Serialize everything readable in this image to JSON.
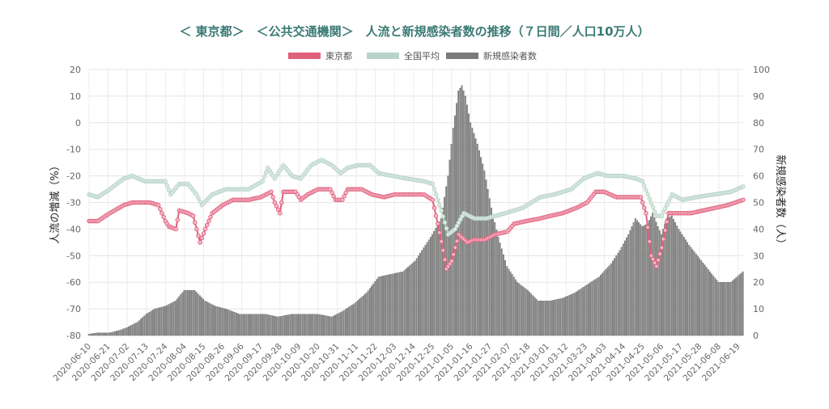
{
  "chart_data": {
    "type": "bar+line",
    "title": "＜ 東京都＞　＜公共交通機関＞　人流と新規感染者数の推移（７日間／人口10万人）",
    "legend": [
      "東京都",
      "全国平均",
      "新規感染者数"
    ],
    "legend_position": "top-center",
    "ylabel_left": "人流の増減（%）",
    "ylabel_right": "新規感染者数（人）",
    "y_left_lim": [
      -80,
      20
    ],
    "y_left_ticks": [
      "20",
      "10",
      "0",
      "-10",
      "-20",
      "-30",
      "-40",
      "-50",
      "-60",
      "-70",
      "-80"
    ],
    "y_right_lim": [
      0,
      100
    ],
    "y_right_ticks": [
      "100",
      "90",
      "80",
      "70",
      "60",
      "50",
      "40",
      "30",
      "20",
      "10",
      "0"
    ],
    "x_start": "2020-06-10",
    "x_end": "2021-06-22",
    "x_ticks": [
      "2020-06-10",
      "2020-06-21",
      "2020-07-02",
      "2020-07-13",
      "2020-07-24",
      "2020-08-04",
      "2020-08-15",
      "2020-08-26",
      "2020-09-06",
      "2020-09-17",
      "2020-09-28",
      "2020-10-09",
      "2020-10-20",
      "2020-10-31",
      "2020-11-11",
      "2020-11-22",
      "2020-12-03",
      "2020-12-14",
      "2020-12-25",
      "2021-01-05",
      "2021-01-16",
      "2021-01-27",
      "2021-02-07",
      "2021-02-18",
      "2021-03-01",
      "2021-03-12",
      "2021-03-23",
      "2021-04-03",
      "2021-04-14",
      "2021-04-25",
      "2021-05-06",
      "2021-05-17",
      "2021-05-28",
      "2021-06-08",
      "2021-06-19"
    ],
    "grid": true,
    "series": [
      {
        "name": "東京都",
        "axis": "left",
        "color": "#e0607e",
        "points": [
          [
            "2020-06-10",
            -37
          ],
          [
            "2020-06-15",
            -37
          ],
          [
            "2020-06-22",
            -34
          ],
          [
            "2020-06-30",
            -31
          ],
          [
            "2020-07-05",
            -30
          ],
          [
            "2020-07-15",
            -30
          ],
          [
            "2020-07-20",
            -31
          ],
          [
            "2020-07-24",
            -37
          ],
          [
            "2020-07-26",
            -39
          ],
          [
            "2020-07-30",
            -40
          ],
          [
            "2020-08-01",
            -33
          ],
          [
            "2020-08-06",
            -34
          ],
          [
            "2020-08-09",
            -35
          ],
          [
            "2020-08-13",
            -45
          ],
          [
            "2020-08-16",
            -40
          ],
          [
            "2020-08-20",
            -34
          ],
          [
            "2020-08-26",
            -31
          ],
          [
            "2020-09-01",
            -29
          ],
          [
            "2020-09-10",
            -29
          ],
          [
            "2020-09-17",
            -28
          ],
          [
            "2020-09-23",
            -26
          ],
          [
            "2020-09-25",
            -30
          ],
          [
            "2020-09-28",
            -34
          ],
          [
            "2020-09-30",
            -26
          ],
          [
            "2020-10-07",
            -26
          ],
          [
            "2020-10-10",
            -29
          ],
          [
            "2020-10-14",
            -27
          ],
          [
            "2020-10-20",
            -25
          ],
          [
            "2020-10-27",
            -25
          ],
          [
            "2020-10-30",
            -29
          ],
          [
            "2020-11-03",
            -29
          ],
          [
            "2020-11-06",
            -25
          ],
          [
            "2020-11-14",
            -25
          ],
          [
            "2020-11-20",
            -27
          ],
          [
            "2020-11-27",
            -28
          ],
          [
            "2020-12-03",
            -27
          ],
          [
            "2020-12-10",
            -27
          ],
          [
            "2020-12-20",
            -27
          ],
          [
            "2020-12-25",
            -29
          ],
          [
            "2020-12-28",
            -38
          ],
          [
            "2020-12-31",
            -48
          ],
          [
            "2021-01-02",
            -55
          ],
          [
            "2021-01-05",
            -52
          ],
          [
            "2021-01-09",
            -42
          ],
          [
            "2021-01-14",
            -45
          ],
          [
            "2021-01-18",
            -44
          ],
          [
            "2021-01-24",
            -44
          ],
          [
            "2021-01-30",
            -42
          ],
          [
            "2021-02-06",
            -41
          ],
          [
            "2021-02-10",
            -38
          ],
          [
            "2021-02-17",
            -37
          ],
          [
            "2021-02-25",
            -36
          ],
          [
            "2021-03-03",
            -35
          ],
          [
            "2021-03-10",
            -34
          ],
          [
            "2021-03-18",
            -32
          ],
          [
            "2021-03-24",
            -30
          ],
          [
            "2021-03-29",
            -26
          ],
          [
            "2021-04-03",
            -26
          ],
          [
            "2021-04-10",
            -28
          ],
          [
            "2021-04-17",
            -28
          ],
          [
            "2021-04-24",
            -28
          ],
          [
            "2021-04-27",
            -34
          ],
          [
            "2021-04-30",
            -50
          ],
          [
            "2021-05-03",
            -54
          ],
          [
            "2021-05-06",
            -47
          ],
          [
            "2021-05-10",
            -34
          ],
          [
            "2021-05-15",
            -34
          ],
          [
            "2021-05-23",
            -34
          ],
          [
            "2021-05-30",
            -33
          ],
          [
            "2021-06-06",
            -32
          ],
          [
            "2021-06-13",
            -31
          ],
          [
            "2021-06-22",
            -29
          ]
        ]
      },
      {
        "name": "全国平均",
        "axis": "left",
        "color": "#b8d4c8",
        "points": [
          [
            "2020-06-10",
            -27
          ],
          [
            "2020-06-15",
            -28
          ],
          [
            "2020-06-22",
            -25
          ],
          [
            "2020-06-30",
            -21
          ],
          [
            "2020-07-05",
            -20
          ],
          [
            "2020-07-12",
            -22
          ],
          [
            "2020-07-24",
            -22
          ],
          [
            "2020-07-27",
            -27
          ],
          [
            "2020-08-01",
            -23
          ],
          [
            "2020-08-06",
            -23
          ],
          [
            "2020-08-11",
            -27
          ],
          [
            "2020-08-14",
            -31
          ],
          [
            "2020-08-20",
            -27
          ],
          [
            "2020-08-28",
            -25
          ],
          [
            "2020-09-05",
            -25
          ],
          [
            "2020-09-10",
            -25
          ],
          [
            "2020-09-18",
            -22
          ],
          [
            "2020-09-21",
            -17
          ],
          [
            "2020-09-25",
            -21
          ],
          [
            "2020-09-30",
            -16
          ],
          [
            "2020-10-05",
            -20
          ],
          [
            "2020-10-10",
            -21
          ],
          [
            "2020-10-16",
            -16
          ],
          [
            "2020-10-22",
            -14
          ],
          [
            "2020-10-28",
            -16
          ],
          [
            "2020-11-02",
            -19
          ],
          [
            "2020-11-06",
            -17
          ],
          [
            "2020-11-12",
            -16
          ],
          [
            "2020-11-19",
            -16
          ],
          [
            "2020-11-24",
            -19
          ],
          [
            "2020-12-02",
            -20
          ],
          [
            "2020-12-10",
            -21
          ],
          [
            "2020-12-20",
            -22
          ],
          [
            "2020-12-25",
            -23
          ],
          [
            "2020-12-30",
            -33
          ],
          [
            "2021-01-03",
            -42
          ],
          [
            "2021-01-07",
            -40
          ],
          [
            "2021-01-12",
            -34
          ],
          [
            "2021-01-18",
            -36
          ],
          [
            "2021-01-25",
            -36
          ],
          [
            "2021-02-05",
            -34
          ],
          [
            "2021-02-15",
            -32
          ],
          [
            "2021-02-25",
            -28
          ],
          [
            "2021-03-05",
            -27
          ],
          [
            "2021-03-15",
            -25
          ],
          [
            "2021-03-22",
            -21
          ],
          [
            "2021-03-30",
            -19
          ],
          [
            "2021-04-05",
            -20
          ],
          [
            "2021-04-14",
            -20
          ],
          [
            "2021-04-21",
            -21
          ],
          [
            "2021-04-25",
            -22
          ],
          [
            "2021-04-28",
            -27
          ],
          [
            "2021-05-03",
            -35
          ],
          [
            "2021-05-06",
            -35
          ],
          [
            "2021-05-12",
            -27
          ],
          [
            "2021-05-18",
            -29
          ],
          [
            "2021-05-26",
            -28
          ],
          [
            "2021-06-05",
            -27
          ],
          [
            "2021-06-15",
            -26
          ],
          [
            "2021-06-22",
            -24
          ]
        ]
      },
      {
        "name": "新規感染者数",
        "axis": "right",
        "color": "#7a7a7a",
        "points": [
          [
            "2020-06-10",
            0.5
          ],
          [
            "2020-06-15",
            1
          ],
          [
            "2020-06-22",
            1
          ],
          [
            "2020-06-28",
            2
          ],
          [
            "2020-07-02",
            3
          ],
          [
            "2020-07-08",
            5
          ],
          [
            "2020-07-13",
            8
          ],
          [
            "2020-07-18",
            10
          ],
          [
            "2020-07-24",
            11
          ],
          [
            "2020-07-30",
            13
          ],
          [
            "2020-08-04",
            17
          ],
          [
            "2020-08-10",
            17
          ],
          [
            "2020-08-16",
            13
          ],
          [
            "2020-08-22",
            11
          ],
          [
            "2020-08-28",
            10
          ],
          [
            "2020-09-05",
            8
          ],
          [
            "2020-09-12",
            8
          ],
          [
            "2020-09-20",
            8
          ],
          [
            "2020-09-27",
            7
          ],
          [
            "2020-10-05",
            8
          ],
          [
            "2020-10-12",
            8
          ],
          [
            "2020-10-20",
            8
          ],
          [
            "2020-10-28",
            7
          ],
          [
            "2020-11-03",
            9
          ],
          [
            "2020-11-10",
            12
          ],
          [
            "2020-11-17",
            16
          ],
          [
            "2020-11-24",
            22
          ],
          [
            "2020-12-01",
            23
          ],
          [
            "2020-12-08",
            24
          ],
          [
            "2020-12-15",
            28
          ],
          [
            "2020-12-20",
            33
          ],
          [
            "2020-12-25",
            38
          ],
          [
            "2020-12-30",
            44
          ],
          [
            "2021-01-03",
            60
          ],
          [
            "2021-01-06",
            78
          ],
          [
            "2021-01-09",
            92
          ],
          [
            "2021-01-11",
            94
          ],
          [
            "2021-01-13",
            90
          ],
          [
            "2021-01-16",
            80
          ],
          [
            "2021-01-20",
            72
          ],
          [
            "2021-01-24",
            62
          ],
          [
            "2021-01-28",
            48
          ],
          [
            "2021-02-01",
            37
          ],
          [
            "2021-02-06",
            26
          ],
          [
            "2021-02-12",
            20
          ],
          [
            "2021-02-18",
            17
          ],
          [
            "2021-02-24",
            13
          ],
          [
            "2021-03-03",
            13
          ],
          [
            "2021-03-10",
            14
          ],
          [
            "2021-03-17",
            16
          ],
          [
            "2021-03-24",
            19
          ],
          [
            "2021-03-31",
            22
          ],
          [
            "2021-04-07",
            27
          ],
          [
            "2021-04-12",
            32
          ],
          [
            "2021-04-17",
            38
          ],
          [
            "2021-04-21",
            44
          ],
          [
            "2021-04-25",
            41
          ],
          [
            "2021-04-28",
            42
          ],
          [
            "2021-05-01",
            46
          ],
          [
            "2021-05-04",
            41
          ],
          [
            "2021-05-06",
            38
          ],
          [
            "2021-05-09",
            44
          ],
          [
            "2021-05-12",
            45
          ],
          [
            "2021-05-16",
            40
          ],
          [
            "2021-05-22",
            34
          ],
          [
            "2021-05-28",
            29
          ],
          [
            "2021-06-03",
            24
          ],
          [
            "2021-06-08",
            20
          ],
          [
            "2021-06-15",
            20
          ],
          [
            "2021-06-22",
            24
          ]
        ]
      }
    ]
  }
}
